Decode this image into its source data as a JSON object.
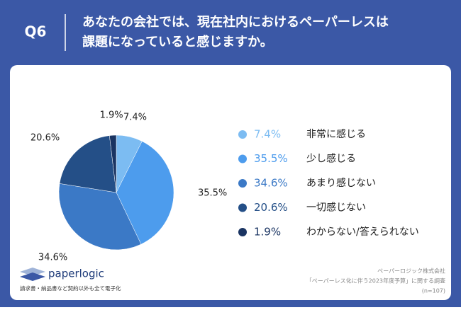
{
  "header": {
    "q": "Q6",
    "lines": [
      "あなたの会社では、現在社内におけるペーパーレスは",
      "課題になっていると感じますか。"
    ]
  },
  "chart_data": {
    "type": "pie",
    "categories": [
      "非常に感じる",
      "少し感じる",
      "あまり感じない",
      "一切感じない",
      "わからない/答えられない"
    ],
    "values": [
      7.4,
      35.5,
      34.6,
      20.6,
      1.9
    ],
    "value_labels": [
      "7.4%",
      "35.5%",
      "34.6%",
      "20.6%",
      "1.9%"
    ],
    "colors": [
      "#7cbcf2",
      "#4d9ced",
      "#3b79c6",
      "#244f87",
      "#1a3462"
    ]
  },
  "footer": {
    "logo": "paperlogic",
    "tagline": "請求書・納品書など契約以外も全て電子化",
    "source": [
      "ペーパーロジック株式会社",
      "「ペーパーレス化に伴う2023年度予算」に関する調査",
      "(n=107)"
    ]
  }
}
